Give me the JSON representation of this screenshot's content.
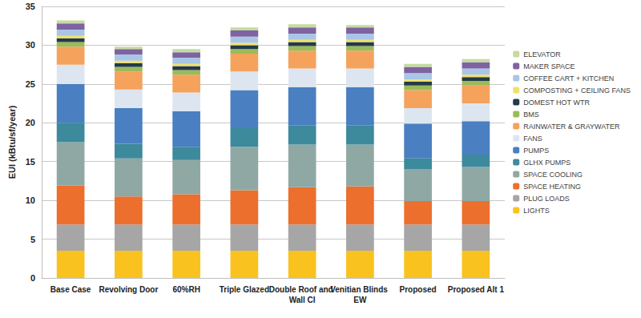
{
  "chart_data": {
    "type": "bar",
    "stacked": true,
    "grid": true,
    "legend": "right",
    "y_label": "EUI (kBtu/sf/year)",
    "categories": [
      "Base Case",
      "Revolving Door",
      "60%RH",
      "Triple Glazed",
      "Double Roof and Wall CI",
      "Venitian Blinds EW",
      "Proposed",
      "Proposed Alt 1"
    ],
    "ylim": [
      0,
      35
    ],
    "yticks": [
      0,
      5,
      10,
      15,
      20,
      25,
      30,
      35
    ],
    "series": [
      {
        "name": "LIGHTS",
        "color": "#f9c21e",
        "values": [
          3.5,
          3.5,
          3.5,
          3.5,
          3.5,
          3.5,
          3.5,
          3.5
        ]
      },
      {
        "name": "PLUG LOADS",
        "color": "#a6a6a6",
        "values": [
          3.4,
          3.4,
          3.4,
          3.4,
          3.4,
          3.4,
          3.4,
          3.4
        ]
      },
      {
        "name": "SPACE HEATING",
        "color": "#ec6f2d",
        "values": [
          5.0,
          3.6,
          3.9,
          4.4,
          4.8,
          4.9,
          3.0,
          3.0
        ]
      },
      {
        "name": "SPACE COOLING",
        "color": "#8fa8a4",
        "values": [
          5.6,
          4.9,
          4.4,
          5.6,
          5.5,
          5.4,
          4.1,
          4.4
        ]
      },
      {
        "name": "GLHX PUMPS",
        "color": "#3c8a9c",
        "values": [
          2.5,
          1.9,
          1.7,
          2.4,
          2.5,
          2.5,
          1.4,
          1.6
        ]
      },
      {
        "name": "PUMPS",
        "color": "#4a7fc1",
        "values": [
          5.0,
          4.6,
          4.6,
          4.9,
          4.9,
          4.9,
          4.5,
          4.3
        ]
      },
      {
        "name": "FANS",
        "color": "#dde6f0",
        "values": [
          2.5,
          2.4,
          2.4,
          2.4,
          2.4,
          2.4,
          2.0,
          2.3
        ]
      },
      {
        "name": "RAINWATER & GRAYWATER",
        "color": "#f5a25d",
        "values": [
          2.3,
          2.3,
          2.3,
          2.3,
          2.3,
          2.3,
          2.3,
          2.3
        ]
      },
      {
        "name": "BMS",
        "color": "#9bbb59",
        "values": [
          0.6,
          0.6,
          0.6,
          0.6,
          0.6,
          0.6,
          0.6,
          0.6
        ]
      },
      {
        "name": "DOMEST HOT WTR",
        "color": "#233b4a",
        "values": [
          0.5,
          0.5,
          0.5,
          0.5,
          0.5,
          0.5,
          0.5,
          0.5
        ]
      },
      {
        "name": "COMPOSTING + CEILING FANS",
        "color": "#f2e06b",
        "values": [
          0.3,
          0.3,
          0.3,
          0.3,
          0.3,
          0.3,
          0.3,
          0.3
        ]
      },
      {
        "name": "COFFEE CART + KITCHEN",
        "color": "#a9c6e6",
        "values": [
          0.8,
          0.8,
          0.8,
          0.8,
          0.8,
          0.8,
          0.8,
          0.8
        ]
      },
      {
        "name": "MAKER SPACE",
        "color": "#7f62a1",
        "values": [
          0.8,
          0.7,
          0.7,
          0.8,
          0.8,
          0.8,
          0.8,
          0.8
        ]
      },
      {
        "name": "ELEVATOR",
        "color": "#c5dba0",
        "values": [
          0.4,
          0.3,
          0.4,
          0.4,
          0.4,
          0.3,
          0.4,
          0.4
        ]
      }
    ]
  }
}
